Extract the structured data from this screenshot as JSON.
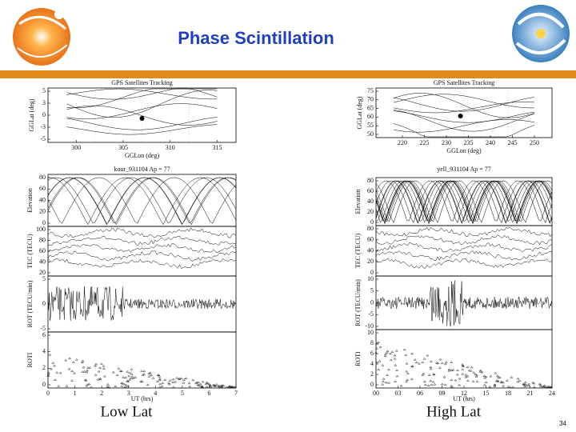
{
  "header": {
    "title": "Phase Scintillation"
  },
  "figures": [
    {
      "caption": "Low Lat",
      "tracking": {
        "title": "GPS Satellites Tracking",
        "xlabel": "GGLon (deg)",
        "ylabel": "GGLat (deg)",
        "xticks": [
          "300",
          "305",
          "310",
          "315"
        ],
        "yticks": [
          "5",
          "3",
          "0",
          "-3",
          "-5"
        ]
      },
      "run_label": "kour_931104    Ap = 77",
      "panels": [
        {
          "ylabel": "Elevation",
          "yticks": [
            "80",
            "60",
            "40",
            "20",
            "0"
          ]
        },
        {
          "ylabel": "TEC (TECU)",
          "yticks": [
            "100",
            "80",
            "60",
            "40",
            "20"
          ]
        },
        {
          "ylabel": "ROT (TECU/min)",
          "yticks": [
            "5",
            "0",
            "-5"
          ]
        },
        {
          "ylabel": "ROTI",
          "yticks": [
            "6",
            "4",
            "2",
            "0"
          ]
        }
      ],
      "xticks": [
        "0",
        "1",
        "2",
        "3",
        "4",
        "5",
        "6",
        "7"
      ],
      "xlabel": "UT (hrs)"
    },
    {
      "caption": "High Lat",
      "tracking": {
        "title": "GPS Satellites Tracking",
        "xlabel": "GGLon (deg)",
        "ylabel": "GGLat (deg)",
        "xticks": [
          "220",
          "225",
          "230",
          "235",
          "240",
          "245",
          "250"
        ],
        "yticks": [
          "75",
          "70",
          "65",
          "60",
          "55",
          "50"
        ]
      },
      "run_label": "yell_931104    Ap = 77",
      "panels": [
        {
          "ylabel": "Elevation",
          "yticks": [
            "80",
            "60",
            "40",
            "20",
            "0"
          ]
        },
        {
          "ylabel": "TEC (TECU)",
          "yticks": [
            "80",
            "60",
            "40",
            "20",
            "0"
          ]
        },
        {
          "ylabel": "ROT (TECU/min)",
          "yticks": [
            "10",
            "5",
            "0",
            "-5",
            "-10"
          ]
        },
        {
          "ylabel": "ROTI",
          "yticks": [
            "10",
            "8",
            "6",
            "4",
            "2",
            "0"
          ]
        }
      ],
      "xticks": [
        "00",
        "03",
        "06",
        "09",
        "12",
        "15",
        "18",
        "21",
        "24"
      ],
      "xlabel": "UT (hrs)"
    }
  ],
  "page_number": "34"
}
